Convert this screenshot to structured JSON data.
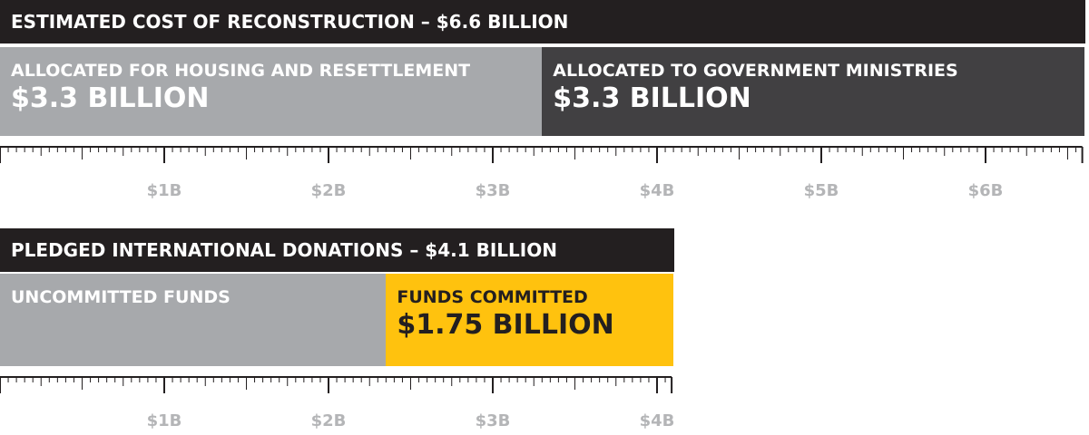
{
  "chart_data": [
    {
      "type": "bar",
      "title": "ESTIMATED COST OF RECONSTRUCTION – $6.6 BILLION",
      "total": 6.6,
      "segments": [
        {
          "name": "ALLOCATED FOR HOUSING AND RESETTLEMENT",
          "value_label": "$3.3 BILLION",
          "value": 3.3,
          "color": "#a7a9ac",
          "text_color": "#ffffff"
        },
        {
          "name": "ALLOCATED TO GOVERNMENT MINISTRIES",
          "value_label": "$3.3 BILLION",
          "value": 3.3,
          "color": "#414042",
          "text_color": "#ffffff"
        }
      ],
      "xlim": [
        0,
        6.6
      ],
      "tick_labels": [
        "$1B",
        "$2B",
        "$3B",
        "$4B",
        "$5B",
        "$6B"
      ],
      "tick_values": [
        1,
        2,
        3,
        4,
        5,
        6
      ]
    },
    {
      "type": "bar",
      "title": "PLEDGED INTERNATIONAL DONATIONS – $4.1 BILLION",
      "total": 4.1,
      "segments": [
        {
          "name": "UNCOMMITTED FUNDS",
          "value_label": "",
          "value": 2.35,
          "color": "#a7a9ac",
          "text_color": "#ffffff"
        },
        {
          "name": "FUNDS COMMITTED",
          "value_label": "$1.75 BILLION",
          "value": 1.75,
          "color": "#ffc20e",
          "text_color": "#231f20"
        }
      ],
      "xlim": [
        0,
        4.1
      ],
      "tick_labels": [
        "$1B",
        "$2B",
        "$3B",
        "$4B"
      ],
      "tick_values": [
        1,
        2,
        3,
        4
      ]
    }
  ],
  "colors": {
    "header": "#231f20",
    "axis": "#231f20",
    "tick_label": "#b4b5b7"
  }
}
